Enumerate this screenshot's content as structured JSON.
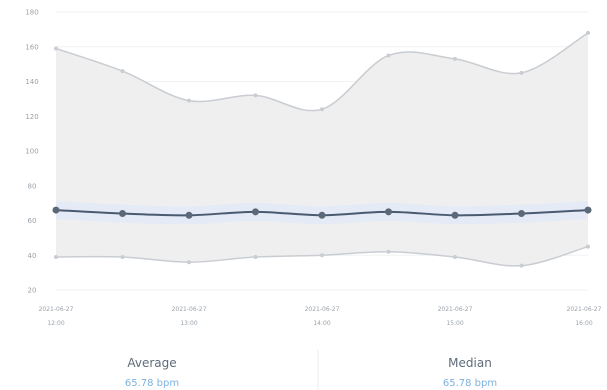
{
  "colors": {
    "band_fill": "#efefef",
    "band_stroke": "#c9cdd2",
    "avg_line": "#4a5a70",
    "avg_band": "#e4eaf6",
    "marker": "#5a6878",
    "grid": "#f1f2f4",
    "value_text": "#7fb0de"
  },
  "chart_data": {
    "type": "line",
    "y_ticks": [
      "180",
      "160",
      "140",
      "120",
      "100",
      "80",
      "60",
      "40",
      "20"
    ],
    "ylim": [
      20,
      180
    ],
    "x": [
      0,
      1,
      2,
      3,
      4,
      5,
      6,
      7,
      8
    ],
    "x_ticks": [
      {
        "index": 0,
        "line1": "2021-06-27",
        "line2": "12:00"
      },
      {
        "index": 2,
        "line1": "2021-06-27",
        "line2": "13:00"
      },
      {
        "index": 4,
        "line1": "2021-06-27",
        "line2": "14:00"
      },
      {
        "index": 6,
        "line1": "2021-06-27",
        "line2": "15:00"
      },
      {
        "index": 8,
        "line1": "2021-06-27",
        "line2": "16:00"
      }
    ],
    "series": [
      {
        "role": "upper",
        "values": [
          159,
          146,
          129,
          132,
          124,
          155,
          153,
          145,
          168
        ]
      },
      {
        "role": "average",
        "values": [
          66,
          64,
          63,
          65,
          63,
          65,
          63,
          64,
          66
        ]
      },
      {
        "role": "lower",
        "values": [
          39,
          39,
          36,
          39,
          40,
          42,
          39,
          34,
          45
        ]
      }
    ],
    "grid": true
  },
  "stats": [
    {
      "label": "Average",
      "value": "65.78 bpm"
    },
    {
      "label": "Median",
      "value": "65.78 bpm"
    }
  ]
}
